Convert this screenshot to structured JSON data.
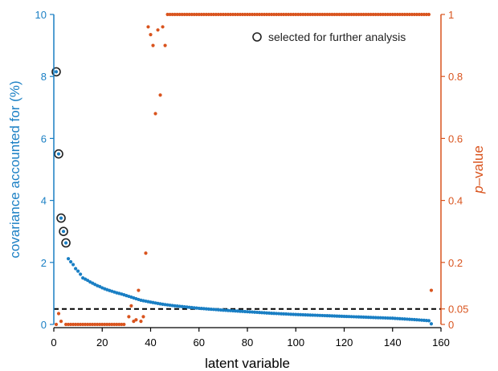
{
  "chart_data": {
    "type": "scatter",
    "xlabel": "latent variable",
    "xlim": [
      0,
      160
    ],
    "xticks": [
      0,
      20,
      40,
      60,
      80,
      100,
      120,
      140,
      160
    ],
    "left_axis": {
      "label_main": "covariance accounted for",
      "label_unit": "(%)",
      "lim": [
        0,
        10
      ],
      "ticks": [
        0,
        2,
        4,
        6,
        8,
        10
      ],
      "color": "#1a7fc4"
    },
    "right_axis": {
      "label_italic": "p",
      "label_rest": "–value",
      "lim": [
        0,
        1
      ],
      "ticks": [
        "0",
        "0.05",
        "0.2",
        "0.4",
        "0.6",
        "0.8",
        "1"
      ],
      "tick_values": [
        0,
        0.05,
        0.2,
        0.4,
        0.6,
        0.8,
        1
      ],
      "color": "#d9541e"
    },
    "threshold": {
      "p_value": 0.05,
      "style": "dashed",
      "color": "#000000"
    },
    "legend": {
      "label": "selected for further analysis",
      "position": "top-right"
    },
    "selected_points": [
      {
        "x": 1,
        "y": 8.15
      },
      {
        "x": 2,
        "y": 5.5
      },
      {
        "x": 3,
        "y": 3.43
      },
      {
        "x": 4,
        "y": 3.0
      },
      {
        "x": 5,
        "y": 2.63
      }
    ],
    "series": [
      {
        "axis": "left",
        "color": "#1a7fc4",
        "points": [
          [
            1,
            8.15
          ],
          [
            2,
            5.5
          ],
          [
            3,
            3.43
          ],
          [
            4,
            3.0
          ],
          [
            5,
            2.63
          ],
          [
            6,
            2.12
          ],
          [
            7,
            2.02
          ],
          [
            8,
            1.93
          ],
          [
            9,
            1.8
          ],
          [
            10,
            1.72
          ],
          [
            11,
            1.62
          ],
          [
            12,
            1.5
          ],
          [
            13,
            1.46
          ],
          [
            14,
            1.42
          ],
          [
            15,
            1.37
          ],
          [
            16,
            1.33
          ],
          [
            17,
            1.29
          ],
          [
            18,
            1.25
          ],
          [
            19,
            1.22
          ],
          [
            20,
            1.18
          ],
          [
            22,
            1.12
          ],
          [
            24,
            1.07
          ],
          [
            26,
            1.02
          ],
          [
            28,
            0.98
          ],
          [
            30,
            0.93
          ],
          [
            32,
            0.88
          ],
          [
            34,
            0.83
          ],
          [
            36,
            0.78
          ],
          [
            38,
            0.75
          ],
          [
            40,
            0.72
          ],
          [
            45,
            0.65
          ],
          [
            50,
            0.6
          ],
          [
            55,
            0.56
          ],
          [
            60,
            0.52
          ],
          [
            70,
            0.46
          ],
          [
            80,
            0.41
          ],
          [
            90,
            0.36
          ],
          [
            100,
            0.32
          ],
          [
            110,
            0.29
          ],
          [
            120,
            0.26
          ],
          [
            130,
            0.23
          ],
          [
            140,
            0.2
          ],
          [
            150,
            0.15
          ],
          [
            155,
            0.12
          ],
          [
            156,
            0.02
          ]
        ]
      },
      {
        "axis": "right",
        "color": "#d9541e",
        "points": [
          [
            1,
            0
          ],
          [
            2,
            0.035
          ],
          [
            3,
            0.01
          ],
          [
            5,
            0
          ],
          [
            10,
            0
          ],
          [
            15,
            0
          ],
          [
            20,
            0
          ],
          [
            25,
            0
          ],
          [
            28,
            0
          ],
          [
            29,
            0
          ],
          [
            31,
            0.025
          ],
          [
            32,
            0.06
          ],
          [
            33,
            0.01
          ],
          [
            34,
            0.015
          ],
          [
            35,
            0.11
          ],
          [
            36,
            0.01
          ],
          [
            37,
            0.025
          ],
          [
            38,
            0.23
          ],
          [
            39,
            0.96
          ],
          [
            40,
            0.935
          ],
          [
            41,
            0.9
          ],
          [
            42,
            0.68
          ],
          [
            43,
            0.95
          ],
          [
            44,
            0.74
          ],
          [
            45,
            0.96
          ],
          [
            46,
            0.9
          ],
          [
            47,
            1
          ],
          [
            60,
            1
          ],
          [
            80,
            1
          ],
          [
            100,
            1
          ],
          [
            120,
            1
          ],
          [
            140,
            1
          ],
          [
            154,
            1
          ],
          [
            155,
            1
          ],
          [
            156,
            0.11
          ]
        ]
      }
    ]
  }
}
